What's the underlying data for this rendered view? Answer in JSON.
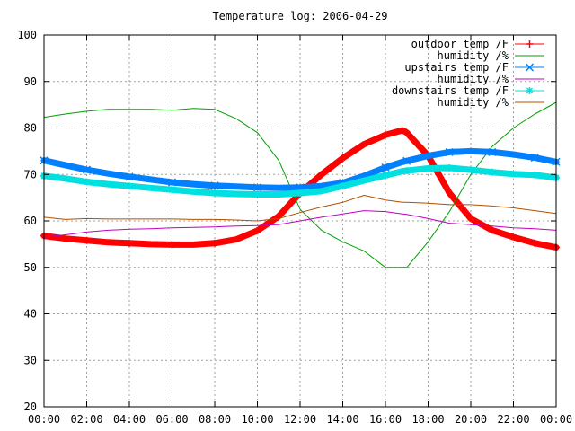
{
  "chart_data": {
    "type": "line",
    "title": "Temperature log: 2006-04-29",
    "xlabel": "",
    "ylabel": "",
    "xlim": [
      "00:00",
      "24:00"
    ],
    "ylim": [
      20,
      100
    ],
    "x_ticks": [
      "00:00",
      "02:00",
      "04:00",
      "06:00",
      "08:00",
      "10:00",
      "12:00",
      "14:00",
      "16:00",
      "18:00",
      "20:00",
      "22:00",
      "00:00"
    ],
    "y_ticks": [
      "20",
      "30",
      "40",
      "50",
      "60",
      "70",
      "80",
      "90",
      "100"
    ],
    "grid": true,
    "legend_position": "top-right",
    "x": [
      "00:00",
      "01:00",
      "02:00",
      "03:00",
      "04:00",
      "05:00",
      "06:00",
      "07:00",
      "08:00",
      "09:00",
      "10:00",
      "11:00",
      "12:00",
      "13:00",
      "14:00",
      "15:00",
      "16:00",
      "16:48",
      "17:00",
      "18:00",
      "19:00",
      "20:00",
      "21:00",
      "22:00",
      "23:00",
      "24:00"
    ],
    "series": [
      {
        "name": "outdoor temp /F",
        "color": "#ff0000",
        "marker": "plus",
        "values": [
          56.8,
          56.2,
          55.8,
          55.4,
          55.2,
          55.0,
          54.9,
          54.9,
          55.2,
          56.0,
          57.9,
          61.0,
          66.0,
          70.0,
          73.5,
          76.5,
          78.5,
          79.5,
          79.0,
          74.0,
          66.0,
          60.5,
          58.0,
          56.5,
          55.2,
          54.3
        ]
      },
      {
        "name": "humidity /%",
        "color": "#00a000",
        "marker": "none",
        "values": [
          82.3,
          83.0,
          83.6,
          84.0,
          84.0,
          84.0,
          83.8,
          84.2,
          84.0,
          82.0,
          79.0,
          73.0,
          62.5,
          58.0,
          55.5,
          53.5,
          50.0,
          50.0,
          50.0,
          55.5,
          62.0,
          70.0,
          76.0,
          80.0,
          83.0,
          85.5
        ]
      },
      {
        "name": "upstairs temp /F",
        "color": "#0080ff",
        "marker": "cross",
        "values": [
          73.0,
          72.0,
          71.0,
          70.2,
          69.5,
          68.9,
          68.3,
          67.9,
          67.6,
          67.4,
          67.2,
          67.1,
          67.2,
          67.5,
          68.2,
          69.7,
          71.5,
          72.7,
          72.9,
          74.0,
          74.8,
          75.0,
          74.8,
          74.3,
          73.6,
          72.7
        ]
      },
      {
        "name": "humidity /%",
        "color": "#c000c0",
        "marker": "none",
        "values": [
          56.5,
          57.0,
          57.6,
          58.0,
          58.2,
          58.3,
          58.5,
          58.6,
          58.7,
          58.9,
          59.0,
          59.2,
          60.0,
          60.8,
          61.5,
          62.2,
          62.0,
          61.5,
          61.4,
          60.5,
          59.5,
          59.2,
          58.9,
          58.5,
          58.3,
          58.0
        ]
      },
      {
        "name": "downstairs temp /F",
        "color": "#00e0e0",
        "marker": "star",
        "values": [
          69.7,
          69.1,
          68.4,
          67.9,
          67.5,
          67.1,
          66.7,
          66.3,
          66.0,
          65.8,
          65.7,
          65.7,
          66.0,
          66.4,
          67.5,
          68.7,
          69.8,
          70.7,
          70.8,
          71.3,
          71.4,
          71.0,
          70.5,
          70.1,
          69.9,
          69.3
        ]
      },
      {
        "name": "humidity /%",
        "color": "#b05000",
        "marker": "none",
        "values": [
          60.8,
          60.3,
          60.5,
          60.4,
          60.4,
          60.4,
          60.4,
          60.3,
          60.3,
          60.2,
          60.0,
          60.5,
          61.8,
          63.0,
          64.0,
          65.5,
          64.5,
          64.0,
          64.0,
          63.8,
          63.5,
          63.5,
          63.2,
          62.8,
          62.2,
          61.6
        ]
      }
    ]
  }
}
